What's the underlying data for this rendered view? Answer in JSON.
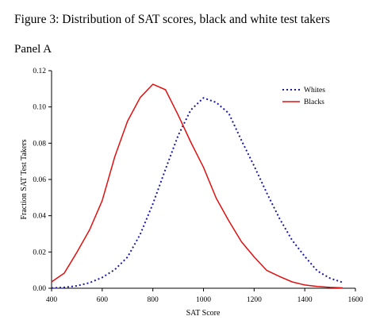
{
  "figure_title": "Figure 3: Distribution of SAT scores, black and white test takers",
  "panel_label": "Panel A",
  "colors": {
    "whites": "#1a1aa6",
    "blacks": "#e01010",
    "axis": "#000000"
  },
  "chart_data": {
    "type": "line",
    "title": "",
    "xlabel": "SAT Score",
    "ylabel": "Fraction SAT Test Takers",
    "xlim": [
      400,
      1600
    ],
    "ylim": [
      0,
      0.12
    ],
    "x_ticks": [
      400,
      600,
      800,
      1000,
      1200,
      1400,
      1600
    ],
    "y_ticks": [
      0,
      0.02,
      0.04,
      0.06,
      0.08,
      0.1,
      0.12
    ],
    "x_tick_labels": [
      "400",
      "600",
      "800",
      "1000",
      "1200",
      "1400",
      "1600"
    ],
    "y_tick_labels": [
      "0.00",
      "0.02",
      "0.04",
      "0.06",
      "0.08",
      "0.10",
      "0.12"
    ],
    "grid": false,
    "legend_position": "top-right",
    "series": [
      {
        "name": "Whites",
        "style": "dotted",
        "x": [
          400,
          450,
          500,
          550,
          600,
          650,
          700,
          750,
          800,
          850,
          900,
          950,
          1000,
          1050,
          1100,
          1150,
          1200,
          1250,
          1300,
          1350,
          1400,
          1450,
          1500,
          1550
        ],
        "y": [
          0.0001,
          0.0005,
          0.0013,
          0.003,
          0.0059,
          0.0103,
          0.0172,
          0.0297,
          0.0465,
          0.0656,
          0.0843,
          0.0983,
          0.105,
          0.1025,
          0.0965,
          0.0815,
          0.0675,
          0.0525,
          0.0385,
          0.0265,
          0.0175,
          0.0095,
          0.0055,
          0.0032
        ]
      },
      {
        "name": "Blacks",
        "style": "solid",
        "x": [
          400,
          450,
          500,
          550,
          600,
          650,
          700,
          750,
          800,
          850,
          900,
          950,
          1000,
          1050,
          1100,
          1150,
          1200,
          1250,
          1300,
          1350,
          1400,
          1450,
          1500,
          1550
        ],
        "y": [
          0.0035,
          0.0083,
          0.0198,
          0.0322,
          0.0483,
          0.0727,
          0.0922,
          0.1052,
          0.1125,
          0.1095,
          0.0955,
          0.0806,
          0.0667,
          0.0497,
          0.0372,
          0.0256,
          0.0173,
          0.0098,
          0.0065,
          0.0035,
          0.0018,
          0.001,
          0.0005,
          0.0002
        ]
      }
    ]
  }
}
